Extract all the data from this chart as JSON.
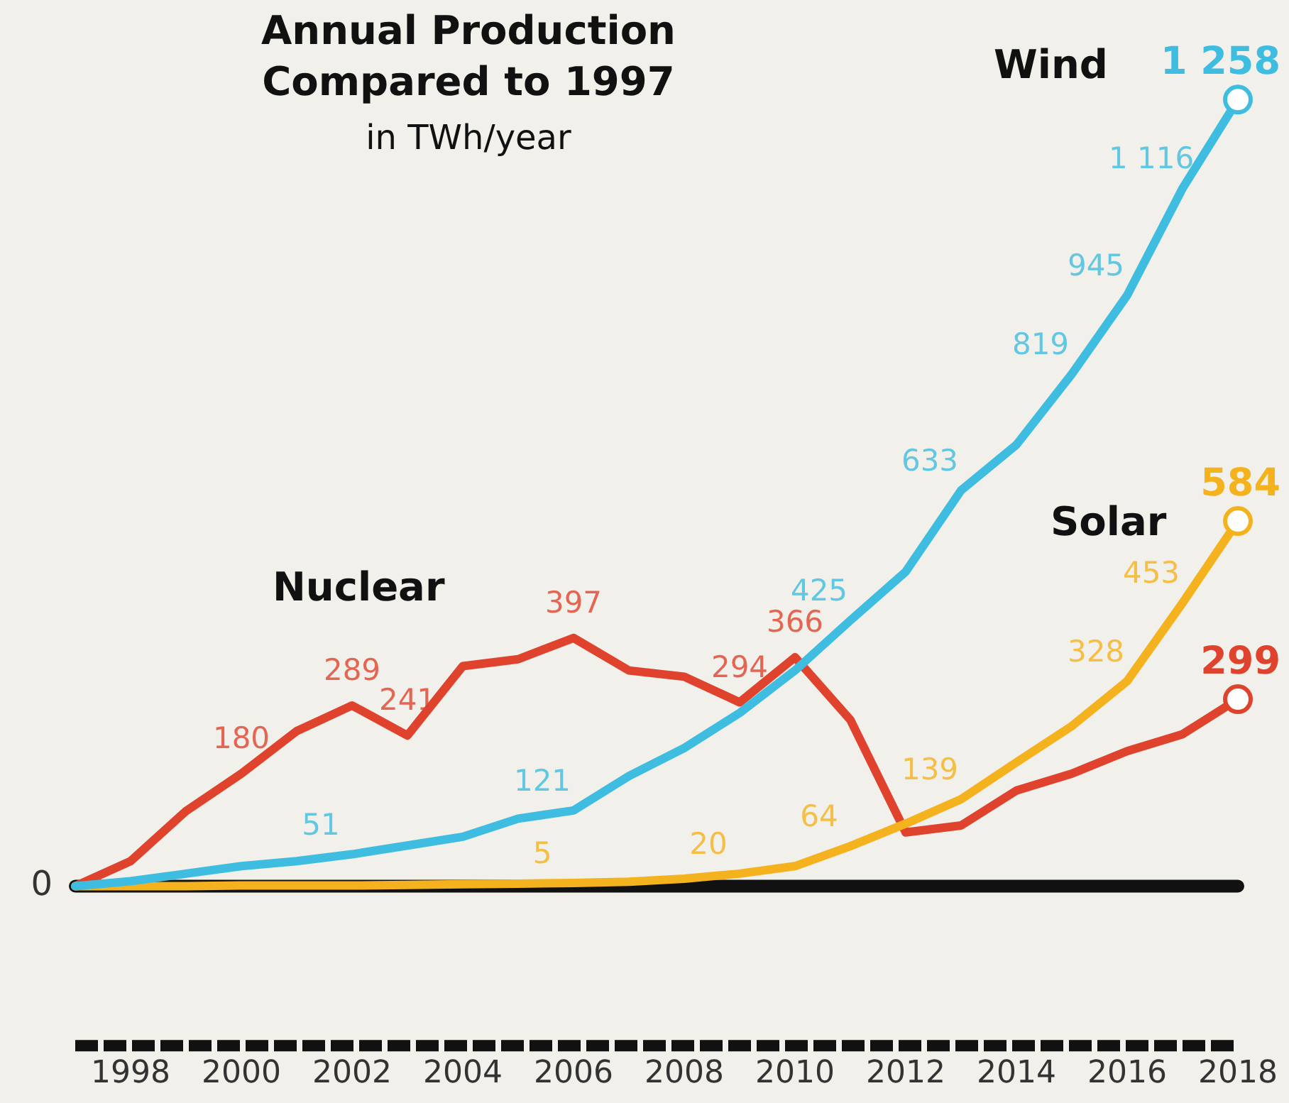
{
  "chart_data": {
    "type": "line",
    "title": "Annual Production\nCompared to 1997",
    "subtitle": "in TWh/year",
    "x": [
      1997,
      1998,
      1999,
      2000,
      2001,
      2002,
      2003,
      2004,
      2005,
      2006,
      2007,
      2008,
      2009,
      2010,
      2011,
      2012,
      2013,
      2014,
      2015,
      2016,
      2017,
      2018
    ],
    "xlim": [
      1997,
      2018
    ],
    "xticks": [
      1998,
      2000,
      2002,
      2004,
      2006,
      2008,
      2010,
      2012,
      2014,
      2016,
      2018
    ],
    "grid": false,
    "legend": false,
    "annotations": [
      {
        "text": "0",
        "x": 1997,
        "y": 0
      }
    ],
    "ref_lines": [
      {
        "axis": "y",
        "value": 0,
        "color": "#111111"
      }
    ],
    "series": [
      {
        "name": "Wind",
        "color": "#3fbde0",
        "values": [
          0,
          8,
          20,
          32,
          40,
          51,
          65,
          79,
          108,
          121,
          176,
          221,
          277,
          345,
          425,
          503,
          633,
          706,
          819,
          945,
          1116,
          1258
        ],
        "value_labels": [
          null,
          null,
          null,
          null,
          null,
          "51",
          null,
          null,
          null,
          "121",
          null,
          null,
          null,
          null,
          "425",
          null,
          "633",
          null,
          "819",
          "945",
          "1 116",
          "1 258"
        ]
      },
      {
        "name": "Solar",
        "color": "#f5b21f",
        "values": [
          0,
          0,
          0,
          1,
          1,
          1,
          2,
          3,
          4,
          5,
          7,
          12,
          20,
          32,
          64,
          100,
          139,
          198,
          256,
          328,
          453,
          584
        ],
        "value_labels": [
          null,
          null,
          null,
          null,
          null,
          null,
          null,
          null,
          null,
          "5",
          null,
          null,
          "20",
          null,
          "64",
          null,
          "139",
          null,
          null,
          "328",
          "453",
          "584"
        ]
      },
      {
        "name": "Nuclear",
        "color": "#e0432d",
        "values": [
          0,
          40,
          120,
          180,
          248,
          289,
          241,
          352,
          363,
          397,
          345,
          335,
          294,
          366,
          266,
          86,
          97,
          153,
          180,
          216,
          243,
          299
        ],
        "value_labels": [
          null,
          null,
          null,
          "180",
          null,
          "289",
          "241",
          null,
          null,
          "397",
          null,
          null,
          "294",
          "366",
          null,
          null,
          null,
          null,
          null,
          null,
          null,
          "299"
        ]
      }
    ]
  }
}
